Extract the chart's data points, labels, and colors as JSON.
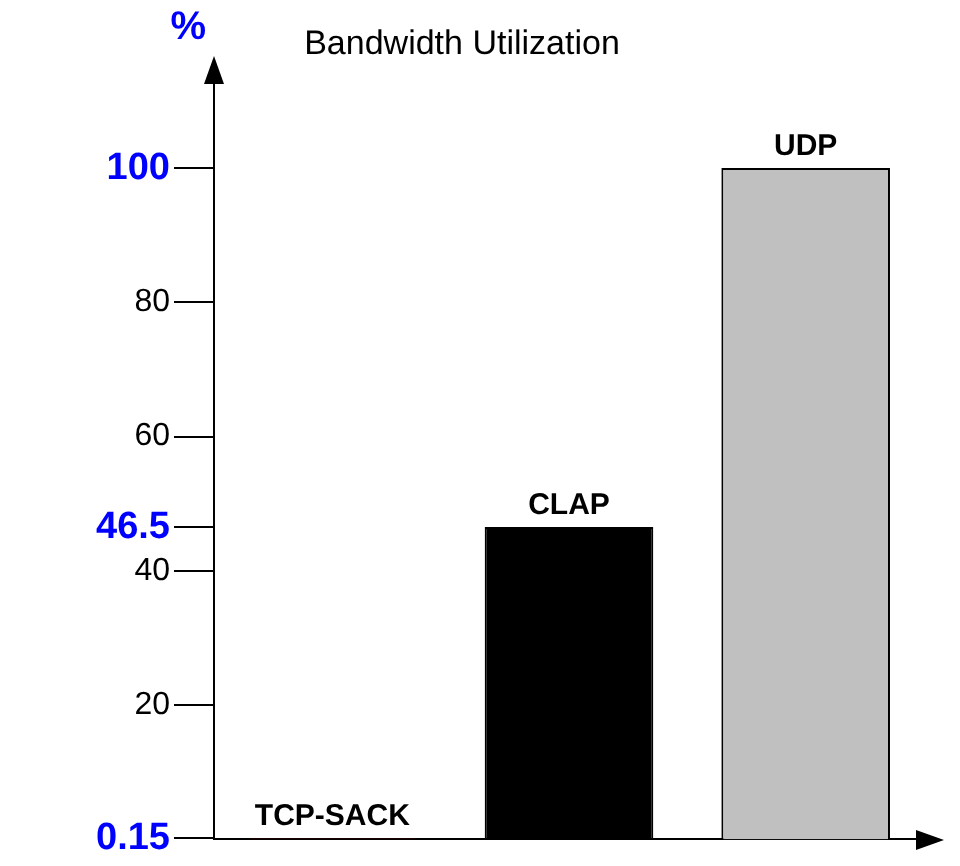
{
  "chart_data": {
    "type": "bar",
    "title": "Bandwidth Utilization",
    "ylabel": "%",
    "categories": [
      "TCP-SACK",
      "CLAP",
      "UDP"
    ],
    "values": [
      0.15,
      46.5,
      100
    ],
    "colors": [
      "#800000",
      "#000000",
      "#c0c0c0"
    ],
    "ylim": [
      0,
      113
    ],
    "yticks": [
      0.15,
      20,
      40,
      46.5,
      60,
      80,
      100
    ],
    "grid": false,
    "legend": false
  }
}
